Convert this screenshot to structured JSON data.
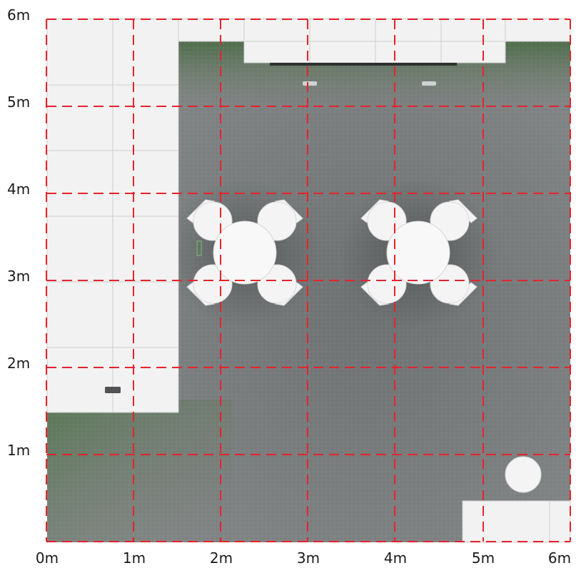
{
  "axes": {
    "x_labels": [
      "0m",
      "1m",
      "2m",
      "3m",
      "4m",
      "5m",
      "6m"
    ],
    "y_labels": [
      "6m",
      "5m",
      "4m",
      "3m",
      "2m",
      "1m"
    ]
  },
  "colors": {
    "carpet_grey": "#7d8081",
    "carpet_green": "#53704d",
    "panel_white": "#f2f2f2",
    "furniture_white": "#f7f7f7",
    "grid_red": "#e8232b"
  },
  "plan": {
    "size_m": [
      6,
      6
    ],
    "grid_step_m": 1,
    "tables": 2,
    "chairs_per_table": 4,
    "stools": 1
  }
}
